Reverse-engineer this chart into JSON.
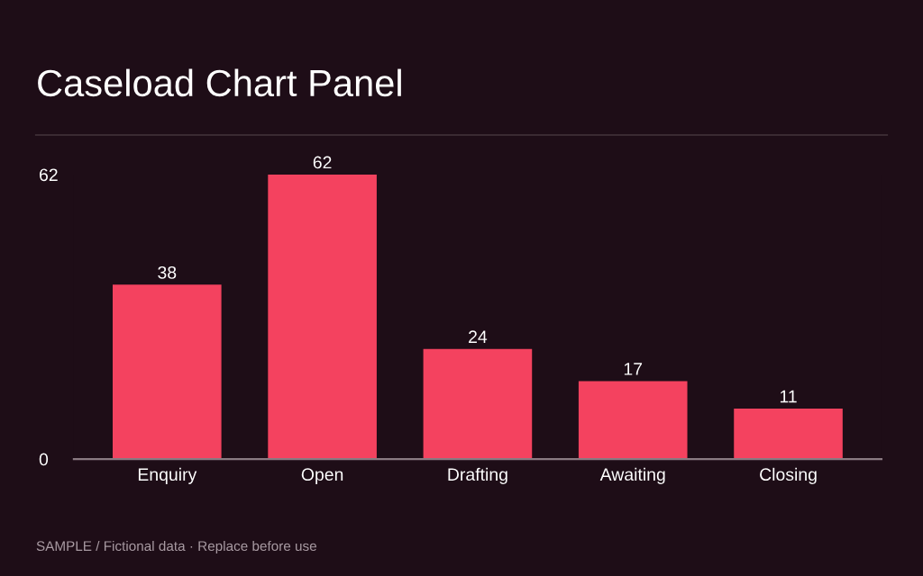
{
  "chart_data": {
    "type": "bar",
    "title": "Caseload Chart Panel",
    "categories": [
      "Enquiry",
      "Open",
      "Drafting",
      "Awaiting",
      "Closing"
    ],
    "values": [
      38,
      62,
      24,
      17,
      11
    ],
    "color": "#f4425f",
    "ylim": [
      0,
      62
    ],
    "yticks": [
      0,
      62
    ],
    "grid": false,
    "legend": false,
    "data_labels": true,
    "annotations": [
      "SAMPLE / Fictional data · Replace before use"
    ]
  }
}
